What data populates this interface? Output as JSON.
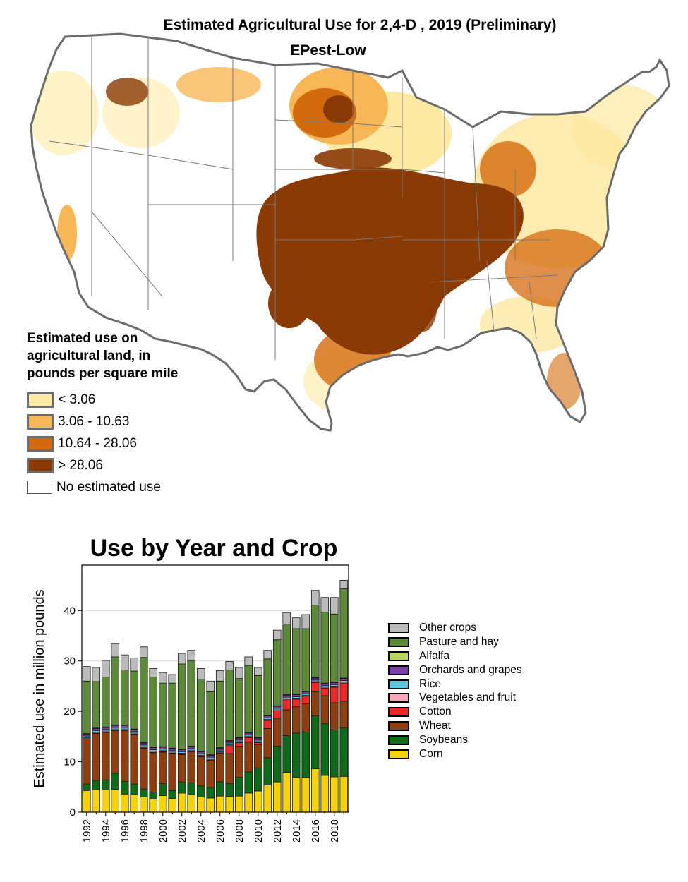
{
  "map": {
    "title": "Estimated Agricultural Use for 2,4-D , 2019 (Preliminary)",
    "subtitle": "EPest-Low",
    "legend_title_lines": [
      "Estimated use on",
      "agricultural land, in",
      "pounds per square mile"
    ],
    "legend": [
      {
        "label": "< 3.06",
        "color": "#fde9a1"
      },
      {
        "label": "3.06 - 10.63",
        "color": "#f8b757"
      },
      {
        "label": "10.64 - 28.06",
        "color": "#d46a0e"
      },
      {
        "label": "> 28.06",
        "color": "#8a3a05"
      },
      {
        "label": "No estimated use",
        "color": "#ffffff"
      }
    ]
  },
  "chart_data": {
    "type": "bar",
    "stacked": true,
    "title": "Use by Year and Crop",
    "ylabel": "Estimated use in million pounds",
    "xlabel": "",
    "ylim": [
      0,
      49
    ],
    "yticks": [
      0,
      10,
      20,
      30,
      40
    ],
    "xtick_labels": [
      "1992",
      "1994",
      "1996",
      "1998",
      "2000",
      "2002",
      "2004",
      "2006",
      "2008",
      "2010",
      "2012",
      "2014",
      "2016",
      "2018"
    ],
    "categories": [
      "1992",
      "1993",
      "1994",
      "1995",
      "1996",
      "1997",
      "1998",
      "1999",
      "2000",
      "2001",
      "2002",
      "2003",
      "2004",
      "2005",
      "2006",
      "2007",
      "2008",
      "2009",
      "2010",
      "2011",
      "2012",
      "2013",
      "2014",
      "2015",
      "2016",
      "2017",
      "2018",
      "2019"
    ],
    "series": [
      {
        "name": "Corn",
        "color": "#f5d20a",
        "values": [
          4.3,
          4.4,
          4.4,
          4.5,
          3.6,
          3.5,
          3.0,
          2.6,
          3.3,
          2.7,
          3.8,
          3.5,
          3.0,
          2.8,
          3.2,
          3.1,
          3.2,
          3.8,
          4.2,
          5.4,
          6.0,
          7.9,
          6.9,
          6.9,
          8.6,
          7.3,
          7.0,
          7.1
        ]
      },
      {
        "name": "Soybeans",
        "color": "#0f6b1a",
        "values": [
          1.3,
          1.9,
          2.0,
          3.2,
          2.5,
          2.1,
          1.6,
          1.4,
          2.4,
          1.6,
          2.2,
          2.3,
          2.2,
          2.1,
          2.8,
          2.6,
          3.7,
          4.2,
          4.6,
          5.4,
          7.1,
          7.3,
          8.8,
          9.0,
          10.5,
          10.3,
          9.3,
          9.6
        ]
      },
      {
        "name": "Wheat",
        "color": "#8e3f12",
        "values": [
          8.9,
          9.3,
          9.4,
          8.5,
          10.1,
          9.8,
          8.1,
          7.8,
          6.2,
          7.3,
          5.4,
          6.2,
          5.8,
          5.4,
          5.7,
          5.9,
          6.2,
          5.9,
          4.6,
          5.8,
          5.5,
          5.1,
          5.2,
          5.6,
          4.8,
          5.5,
          5.4,
          5.3
        ]
      },
      {
        "name": "Cotton",
        "color": "#ee2828",
        "values": [
          0.1,
          0.1,
          0.1,
          0.1,
          0.1,
          0.1,
          0.1,
          0.1,
          0.1,
          0.1,
          0.1,
          0.1,
          0.1,
          0.1,
          0.1,
          1.6,
          0.7,
          0.9,
          0.4,
          1.6,
          1.5,
          2.0,
          1.5,
          1.5,
          1.8,
          1.5,
          3.1,
          3.6
        ]
      },
      {
        "name": "Vegetables and fruit",
        "color": "#f7a8b8",
        "values": [
          0.2,
          0.2,
          0.2,
          0.2,
          0.2,
          0.2,
          0.2,
          0.2,
          0.2,
          0.2,
          0.2,
          0.2,
          0.2,
          0.2,
          0.2,
          0.2,
          0.2,
          0.2,
          0.2,
          0.2,
          0.2,
          0.2,
          0.2,
          0.2,
          0.2,
          0.2,
          0.2,
          0.2
        ]
      },
      {
        "name": "Rice",
        "color": "#5ac8dc",
        "values": [
          0.3,
          0.3,
          0.3,
          0.3,
          0.3,
          0.3,
          0.3,
          0.3,
          0.3,
          0.3,
          0.3,
          0.3,
          0.3,
          0.3,
          0.3,
          0.3,
          0.3,
          0.3,
          0.3,
          0.3,
          0.3,
          0.3,
          0.3,
          0.3,
          0.3,
          0.3,
          0.3,
          0.3
        ]
      },
      {
        "name": "Orchards and grapes",
        "color": "#7a3fa0",
        "values": [
          0.4,
          0.4,
          0.4,
          0.4,
          0.4,
          0.4,
          0.4,
          0.4,
          0.4,
          0.4,
          0.4,
          0.4,
          0.4,
          0.4,
          0.4,
          0.4,
          0.4,
          0.4,
          0.4,
          0.4,
          0.4,
          0.4,
          0.4,
          0.4,
          0.4,
          0.4,
          0.4,
          0.4
        ]
      },
      {
        "name": "Alfalfa",
        "color": "#b5d65a",
        "values": [
          0.1,
          0.1,
          0.1,
          0.1,
          0.1,
          0.1,
          0.1,
          0.1,
          0.1,
          0.1,
          0.1,
          0.1,
          0.1,
          0.1,
          0.1,
          0.1,
          0.1,
          0.1,
          0.1,
          0.1,
          0.1,
          0.1,
          0.1,
          0.1,
          0.1,
          0.1,
          0.1,
          0.1
        ]
      },
      {
        "name": "Pasture and hay",
        "color": "#5d8a38",
        "values": [
          10.4,
          9.2,
          9.9,
          13.5,
          10.9,
          11.5,
          16.9,
          13.9,
          12.6,
          12.9,
          16.9,
          17.0,
          14.3,
          12.5,
          13.2,
          14.0,
          11.7,
          13.3,
          12.3,
          11.2,
          13.1,
          14.0,
          13.0,
          12.4,
          14.4,
          14.1,
          13.5,
          17.7
        ]
      },
      {
        "name": "Other crops",
        "color": "#bbbbbb",
        "values": [
          2.9,
          2.8,
          3.3,
          2.7,
          3.0,
          2.6,
          2.1,
          1.7,
          2.1,
          1.7,
          2.1,
          2.0,
          2.1,
          2.1,
          2.1,
          1.7,
          2.2,
          1.7,
          1.6,
          1.7,
          1.9,
          2.3,
          2.2,
          2.8,
          2.9,
          2.9,
          3.3,
          1.7
        ]
      }
    ]
  }
}
